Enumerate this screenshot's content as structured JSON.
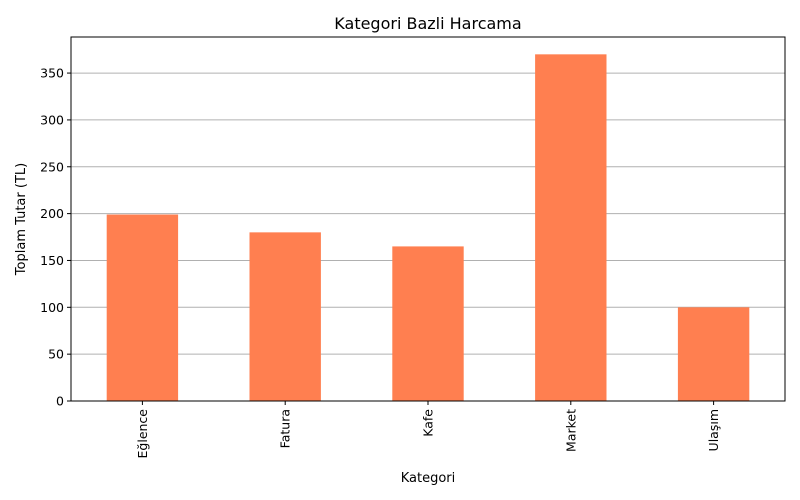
{
  "chart_data": {
    "type": "bar",
    "title": "Kategori Bazli Harcama",
    "xlabel": "Kategori",
    "ylabel": "Toplam Tutar (TL)",
    "categories": [
      "Eğlence",
      "Fatura",
      "Kafe",
      "Market",
      "Ulaşım"
    ],
    "values": [
      199,
      180,
      165,
      370,
      100
    ],
    "ylim": [
      0,
      388.5
    ],
    "yticks": [
      0,
      50,
      100,
      150,
      200,
      250,
      300,
      350
    ],
    "bar_color": "#FF7F50",
    "grid": "y-axis horizontal lines",
    "x_tick_rotation": "vertical"
  }
}
